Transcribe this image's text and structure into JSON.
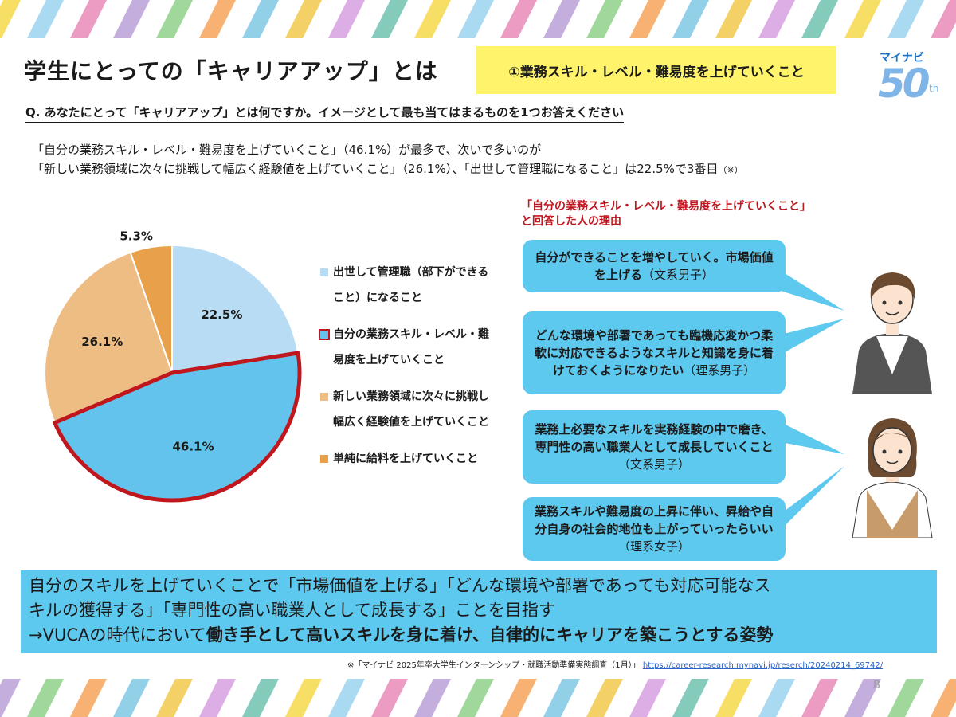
{
  "title": "学生にとっての「キャリアアップ」とは",
  "title_note": "①業務スキル・レベル・難易度を上げていくこと",
  "logo": {
    "brand": "マイナビ",
    "number": "50",
    "suffix": "th"
  },
  "question": "Q. あなたにとって「キャリアアップ」とは何ですか。イメージとして最も当てはまるものを1つお答えください",
  "summary": {
    "line1": "「自分の業務スキル・レベル・難易度を上げていくこと」（46.1%）が最多で、次いで多いのが",
    "line2": "「新しい業務領域に次々に挑戦して幅広く経験値を上げていくこと」（26.1%）、「出世して管理職になること」は22.5%で3番目",
    "note": "（※）"
  },
  "chart_data": {
    "type": "pie",
    "slices": [
      {
        "label": "出世して管理職（部下ができること）になること",
        "value": 22.5,
        "display": "22.5%",
        "color": "#b7dcf3",
        "highlight": false
      },
      {
        "label": "自分の業務スキル・レベル・難易度を上げていくこと",
        "value": 46.1,
        "display": "46.1%",
        "color": "#63c3ec",
        "highlight": true
      },
      {
        "label": "新しい業務領域に次々に挑戦し幅広く経験値を上げていくこと",
        "value": 26.1,
        "display": "26.1%",
        "color": "#eebd84",
        "highlight": false
      },
      {
        "label": "単純に給料を上げていくこと",
        "value": 5.3,
        "display": "5.3%",
        "color": "#e8a04a",
        "highlight": false
      }
    ],
    "highlight_color": "#c0171e",
    "legend_placement": "right"
  },
  "legend": [
    {
      "line1": "出世して管理職（部下ができる",
      "line2": "こと）になること",
      "color": "#b7dcf3",
      "highlight": false
    },
    {
      "line1": "自分の業務スキル・レベル・難",
      "line2": "易度を上げていくこと",
      "color": "#63c3ec",
      "highlight": true
    },
    {
      "line1": "新しい業務領域に次々に挑戦し",
      "line2": "幅広く経験値を上げていくこと",
      "color": "#eebd84",
      "highlight": false
    },
    {
      "line1": "単純に給料を上げていくこと",
      "line2": "",
      "color": "#e8a04a",
      "highlight": false
    }
  ],
  "reasons": {
    "title1": "「自分の業務スキル・レベル・難易度を上げていくこと」",
    "title2": "と回答した人の理由",
    "bubbles": [
      {
        "text": "自分ができることを増やしていく。市場価値を上げる",
        "who": "（文系男子）"
      },
      {
        "text": "どんな環境や部署であっても臨機応変かつ柔軟に対応できるようなスキルと知識を身に着けておくようになりたい",
        "who": "（理系男子）"
      },
      {
        "text": "業務上必要なスキルを実務経験の中で磨き、専門性の高い職業人として成長していくこと",
        "who": "（文系男子）"
      },
      {
        "text": "業務スキルや難易度の上昇に伴い、昇給や自分自身の社会的地位も上がっていったらいい",
        "who": "（理系女子）"
      }
    ]
  },
  "conclusion": {
    "line1": "自分のスキルを上げていくことで「市場価値を上げる」「どんな環境や部署であっても対応可能なス",
    "line2": "キルの獲得する」「専門性の高い職業人として成長する」ことを目指す",
    "line3_prefix": "→VUCAの時代において",
    "line3_strong": "働き手として高いスキルを身に着け、自律的にキャリアを築こうとする姿勢"
  },
  "source": {
    "text": "※「マイナビ 2025年卒大学生インターンシップ・就職活動準備実態調査（1月）」",
    "link": "https://career-research.mynavi.jp/reserch/20240214_69742/"
  },
  "page_number": "8",
  "colors": {
    "bubble": "#5ec9ee",
    "note_yellow": "#fff36b",
    "accent_red": "#c0171e"
  }
}
